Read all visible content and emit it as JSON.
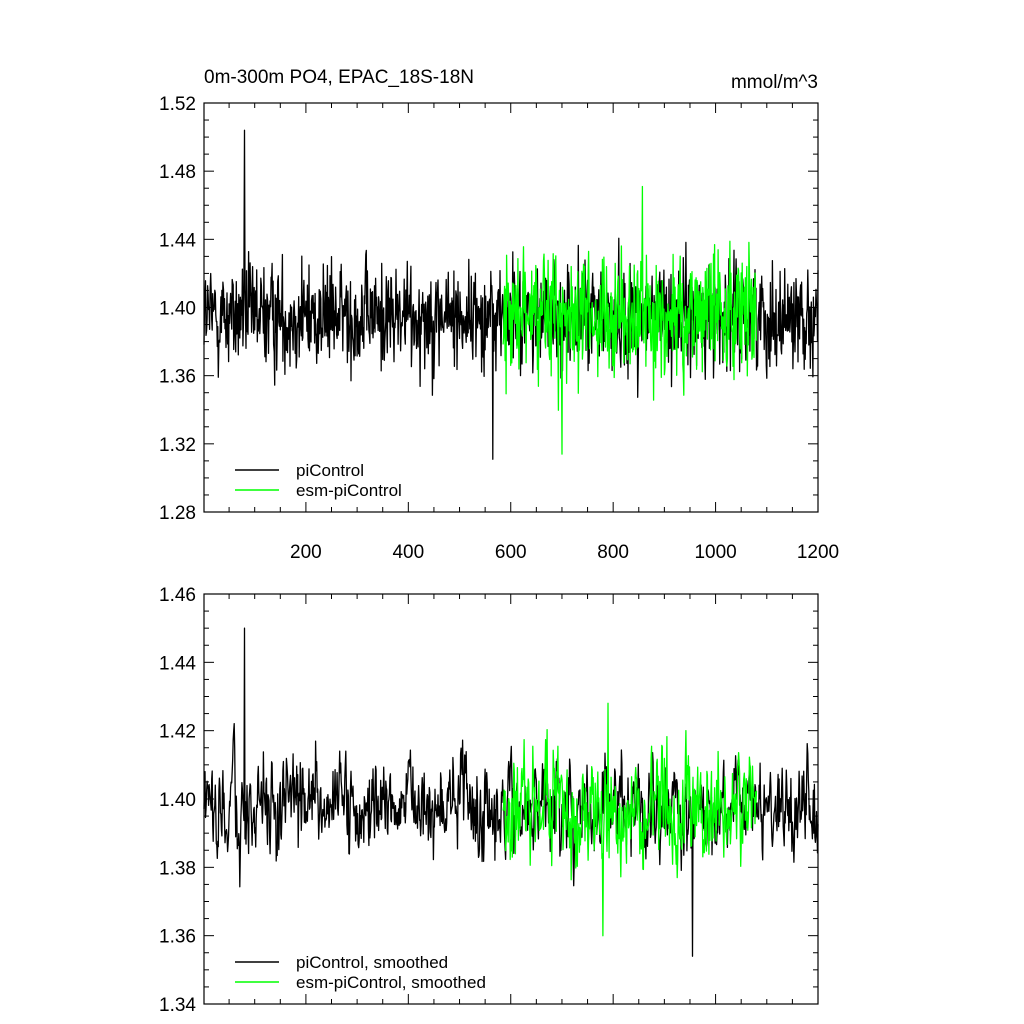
{
  "chart_data": [
    {
      "type": "line",
      "title": "0m-300m PO4, EPAC_18S-18N",
      "units": "mmol/m^3",
      "xlim": [
        1,
        1200
      ],
      "ylim": [
        1.28,
        1.52
      ],
      "yticks": [
        "1.28",
        "1.32",
        "1.36",
        "1.40",
        "1.44",
        "1.48",
        "1.52"
      ],
      "xticks": [
        "200",
        "400",
        "600",
        "800",
        "1000",
        "1200"
      ],
      "legend_position": "bottom-left",
      "series": [
        {
          "name": "piControl",
          "color": "#000000",
          "x_start": 1,
          "x_end": 1200,
          "mean": 1.395,
          "amplitude": 0.04,
          "peak": {
            "x": 80,
            "y": 1.504
          },
          "trough": {
            "x": 565,
            "y": 1.311
          }
        },
        {
          "name": "esm-piControl",
          "color": "#00ff00",
          "x_start": 585,
          "x_end": 1080,
          "mean": 1.396,
          "amplitude": 0.045,
          "peak": {
            "x": 857,
            "y": 1.471
          },
          "trough": {
            "x": 700,
            "y": 1.314
          }
        }
      ]
    },
    {
      "type": "line",
      "xlim": [
        1,
        1200
      ],
      "ylim": [
        1.34,
        1.46
      ],
      "yticks": [
        "1.34",
        "1.36",
        "1.38",
        "1.40",
        "1.42",
        "1.44",
        "1.46"
      ],
      "legend_position": "bottom-left",
      "series": [
        {
          "name": "piControl, smoothed",
          "color": "#000000",
          "x_start": 1,
          "x_end": 1200,
          "mean": 1.397,
          "amplitude": 0.017,
          "peak": {
            "x": 80,
            "y": 1.45
          },
          "trough": {
            "x": 955,
            "y": 1.354
          }
        },
        {
          "name": "esm-piControl, smoothed",
          "color": "#00ff00",
          "x_start": 585,
          "x_end": 1080,
          "mean": 1.396,
          "amplitude": 0.021,
          "peak": {
            "x": 790,
            "y": 1.428
          },
          "trough": {
            "x": 780,
            "y": 1.36
          }
        }
      ]
    }
  ]
}
